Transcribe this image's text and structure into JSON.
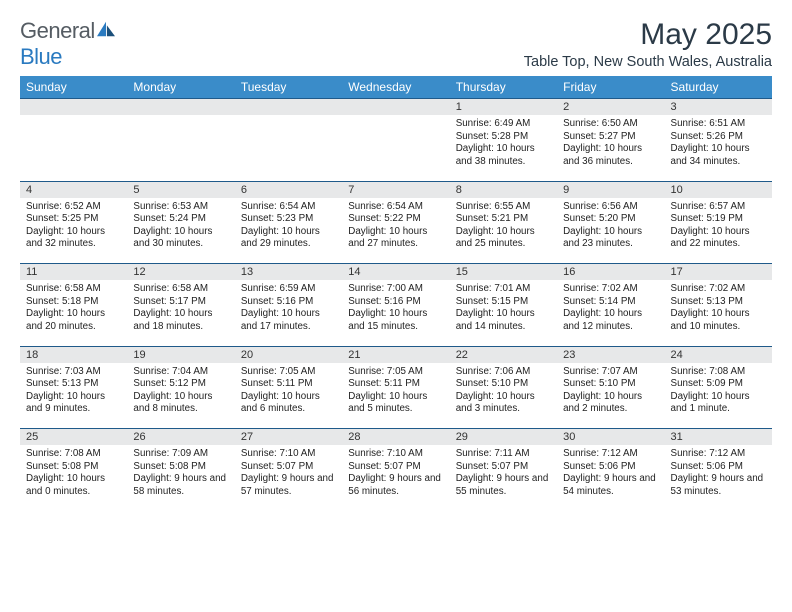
{
  "brand": {
    "name_a": "General",
    "name_b": "Blue"
  },
  "title": "May 2025",
  "location": "Table Top, New South Wales, Australia",
  "colors": {
    "header_bg": "#3a8cc9",
    "header_text": "#ffffff",
    "daynum_bg": "#e7e8e9",
    "row_border": "#1f5a8a",
    "title_color": "#2b3a47"
  },
  "days_of_week": [
    "Sunday",
    "Monday",
    "Tuesday",
    "Wednesday",
    "Thursday",
    "Friday",
    "Saturday"
  ],
  "weeks": [
    [
      null,
      null,
      null,
      null,
      {
        "n": "1",
        "sr": "6:49 AM",
        "ss": "5:28 PM",
        "dl": "10 hours and 38 minutes."
      },
      {
        "n": "2",
        "sr": "6:50 AM",
        "ss": "5:27 PM",
        "dl": "10 hours and 36 minutes."
      },
      {
        "n": "3",
        "sr": "6:51 AM",
        "ss": "5:26 PM",
        "dl": "10 hours and 34 minutes."
      }
    ],
    [
      {
        "n": "4",
        "sr": "6:52 AM",
        "ss": "5:25 PM",
        "dl": "10 hours and 32 minutes."
      },
      {
        "n": "5",
        "sr": "6:53 AM",
        "ss": "5:24 PM",
        "dl": "10 hours and 30 minutes."
      },
      {
        "n": "6",
        "sr": "6:54 AM",
        "ss": "5:23 PM",
        "dl": "10 hours and 29 minutes."
      },
      {
        "n": "7",
        "sr": "6:54 AM",
        "ss": "5:22 PM",
        "dl": "10 hours and 27 minutes."
      },
      {
        "n": "8",
        "sr": "6:55 AM",
        "ss": "5:21 PM",
        "dl": "10 hours and 25 minutes."
      },
      {
        "n": "9",
        "sr": "6:56 AM",
        "ss": "5:20 PM",
        "dl": "10 hours and 23 minutes."
      },
      {
        "n": "10",
        "sr": "6:57 AM",
        "ss": "5:19 PM",
        "dl": "10 hours and 22 minutes."
      }
    ],
    [
      {
        "n": "11",
        "sr": "6:58 AM",
        "ss": "5:18 PM",
        "dl": "10 hours and 20 minutes."
      },
      {
        "n": "12",
        "sr": "6:58 AM",
        "ss": "5:17 PM",
        "dl": "10 hours and 18 minutes."
      },
      {
        "n": "13",
        "sr": "6:59 AM",
        "ss": "5:16 PM",
        "dl": "10 hours and 17 minutes."
      },
      {
        "n": "14",
        "sr": "7:00 AM",
        "ss": "5:16 PM",
        "dl": "10 hours and 15 minutes."
      },
      {
        "n": "15",
        "sr": "7:01 AM",
        "ss": "5:15 PM",
        "dl": "10 hours and 14 minutes."
      },
      {
        "n": "16",
        "sr": "7:02 AM",
        "ss": "5:14 PM",
        "dl": "10 hours and 12 minutes."
      },
      {
        "n": "17",
        "sr": "7:02 AM",
        "ss": "5:13 PM",
        "dl": "10 hours and 10 minutes."
      }
    ],
    [
      {
        "n": "18",
        "sr": "7:03 AM",
        "ss": "5:13 PM",
        "dl": "10 hours and 9 minutes."
      },
      {
        "n": "19",
        "sr": "7:04 AM",
        "ss": "5:12 PM",
        "dl": "10 hours and 8 minutes."
      },
      {
        "n": "20",
        "sr": "7:05 AM",
        "ss": "5:11 PM",
        "dl": "10 hours and 6 minutes."
      },
      {
        "n": "21",
        "sr": "7:05 AM",
        "ss": "5:11 PM",
        "dl": "10 hours and 5 minutes."
      },
      {
        "n": "22",
        "sr": "7:06 AM",
        "ss": "5:10 PM",
        "dl": "10 hours and 3 minutes."
      },
      {
        "n": "23",
        "sr": "7:07 AM",
        "ss": "5:10 PM",
        "dl": "10 hours and 2 minutes."
      },
      {
        "n": "24",
        "sr": "7:08 AM",
        "ss": "5:09 PM",
        "dl": "10 hours and 1 minute."
      }
    ],
    [
      {
        "n": "25",
        "sr": "7:08 AM",
        "ss": "5:08 PM",
        "dl": "10 hours and 0 minutes."
      },
      {
        "n": "26",
        "sr": "7:09 AM",
        "ss": "5:08 PM",
        "dl": "9 hours and 58 minutes."
      },
      {
        "n": "27",
        "sr": "7:10 AM",
        "ss": "5:07 PM",
        "dl": "9 hours and 57 minutes."
      },
      {
        "n": "28",
        "sr": "7:10 AM",
        "ss": "5:07 PM",
        "dl": "9 hours and 56 minutes."
      },
      {
        "n": "29",
        "sr": "7:11 AM",
        "ss": "5:07 PM",
        "dl": "9 hours and 55 minutes."
      },
      {
        "n": "30",
        "sr": "7:12 AM",
        "ss": "5:06 PM",
        "dl": "9 hours and 54 minutes."
      },
      {
        "n": "31",
        "sr": "7:12 AM",
        "ss": "5:06 PM",
        "dl": "9 hours and 53 minutes."
      }
    ]
  ],
  "labels": {
    "sunrise": "Sunrise:",
    "sunset": "Sunset:",
    "daylight": "Daylight:"
  }
}
